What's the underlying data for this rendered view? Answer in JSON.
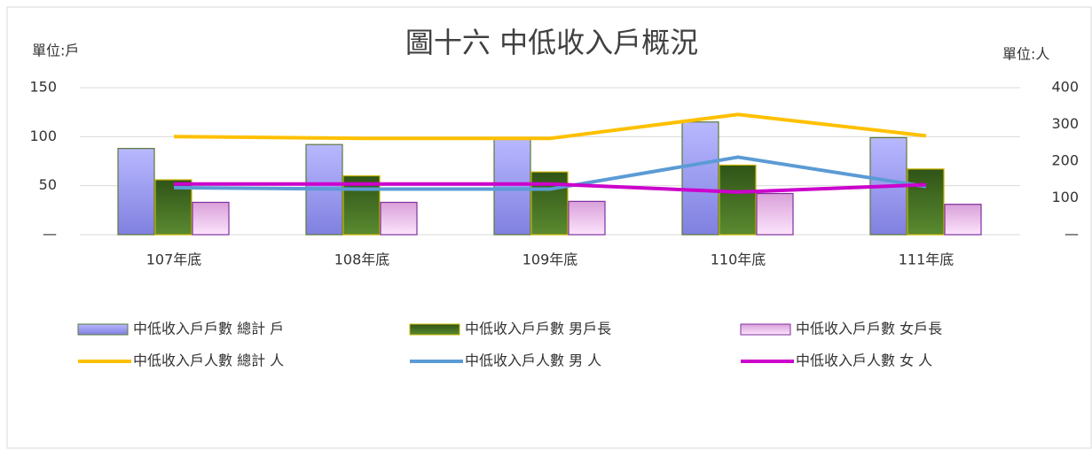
{
  "chart_data": {
    "type": "bar_line",
    "title": "圖十六 中低收入戶概況",
    "y_label": "單位:戶",
    "y2_label": "單位:人",
    "categories": [
      "107年底",
      "108年底",
      "109年底",
      "110年底",
      "111年底"
    ],
    "ylim": [
      0,
      150
    ],
    "yticks": [
      {
        "value": 0,
        "label": "—"
      },
      50,
      100,
      150
    ],
    "y2lim": [
      0,
      400
    ],
    "y2ticks": [
      {
        "value": 0,
        "label": "—"
      },
      100,
      200,
      300,
      400
    ],
    "grid": true,
    "series": [
      {
        "name": "中低收入戶戶數 總計 戶",
        "kind": "bar",
        "color": "#9999ff",
        "values": [
          88,
          92,
          98,
          115,
          99
        ]
      },
      {
        "name": "中低收入戶戶數 男戶長",
        "kind": "bar",
        "color": "#3d6b1f",
        "values": [
          56,
          60,
          64,
          71,
          67
        ]
      },
      {
        "name": "中低收入戶戶數 女戶長",
        "kind": "bar",
        "color": "#f0c0f0",
        "values": [
          33,
          33,
          34,
          42,
          31
        ]
      },
      {
        "name": "中低收入戶人數 總計 人",
        "kind": "line",
        "axis": "y2",
        "color": "#ffc000",
        "values": [
          267,
          262,
          262,
          327,
          269
        ]
      },
      {
        "name": "中低收入戶人數 男 人",
        "kind": "line",
        "axis": "y2",
        "color": "#5b9bd5",
        "values": [
          128,
          124,
          124,
          211,
          131
        ]
      },
      {
        "name": "中低收入戶人數 女 人",
        "kind": "line",
        "axis": "y2",
        "color": "#cc00cc",
        "values": [
          138,
          138,
          138,
          116,
          136
        ]
      }
    ]
  }
}
